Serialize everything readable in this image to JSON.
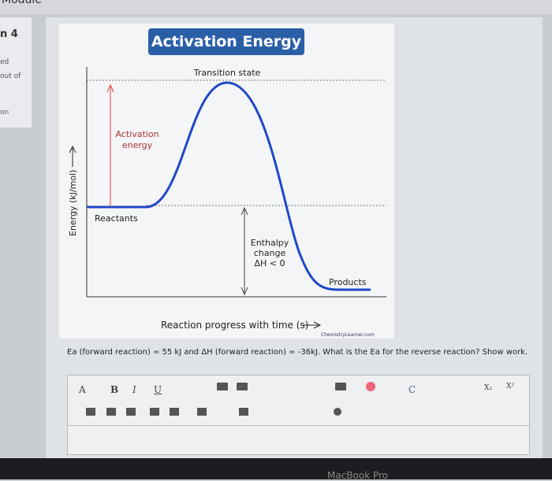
{
  "sidebar": {
    "module": "Module",
    "question": "n 4",
    "items": [
      "ed",
      "out of",
      "on"
    ]
  },
  "diagram": {
    "title": "Activation Energy",
    "transition_label": "Transition state",
    "activation_label": [
      "Activation",
      "energy"
    ],
    "y_axis_label": "Energy (kJ/mol)",
    "reactants_label": "Reactants",
    "enthalpy_label": [
      "Enthalpy",
      "change",
      "ΔH < 0"
    ],
    "products_label": "Products",
    "x_axis_label": "Reaction progress with time (s)",
    "credit": "ChemistryLearner.com"
  },
  "question": "Ea (forward reaction) = 55 kJ and ΔH (forward reaction) = -36kJ.  What is the Ea for the reverse reaction?  Show work.",
  "toolbar": {
    "row1": [
      "A",
      "B",
      "I",
      "U",
      "C",
      "X₂",
      "X²"
    ]
  },
  "device": "MacBook Pro"
}
